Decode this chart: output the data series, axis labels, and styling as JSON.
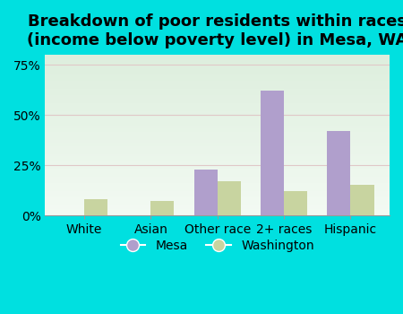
{
  "title": "Breakdown of poor residents within races\n(income below poverty level) in Mesa, WA",
  "categories": [
    "White",
    "Asian",
    "Other race",
    "2+ races",
    "Hispanic"
  ],
  "mesa_values": [
    0,
    0,
    23,
    62,
    42
  ],
  "washington_values": [
    8,
    7,
    17,
    12,
    15
  ],
  "mesa_color": "#b09fcc",
  "washington_color": "#c8d4a0",
  "bg_outer": "#00e0e0",
  "bg_plot_top": "#ddeedd",
  "bg_plot_bottom": "#f3faf3",
  "ylim": [
    0,
    80
  ],
  "yticks": [
    0,
    25,
    50,
    75
  ],
  "ytick_labels": [
    "0%",
    "25%",
    "50%",
    "75%"
  ],
  "title_fontsize": 13,
  "tick_fontsize": 10,
  "legend_labels": [
    "Mesa",
    "Washington"
  ],
  "bar_width": 0.35
}
